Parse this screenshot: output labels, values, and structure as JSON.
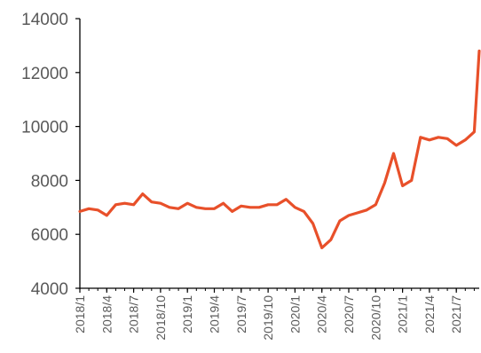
{
  "chart_data": {
    "type": "line",
    "title": "",
    "xlabel": "",
    "ylabel": "",
    "ylim": [
      4000,
      14000
    ],
    "yticks": [
      4000,
      6000,
      8000,
      10000,
      12000,
      14000
    ],
    "xticks": [
      "2018/1",
      "2018/4",
      "2018/7",
      "2018/10",
      "2019/1",
      "2019/4",
      "2019/7",
      "2019/10",
      "2020/1",
      "2020/4",
      "2020/7",
      "2020/10",
      "2021/1",
      "2021/4",
      "2021/7"
    ],
    "grid": false,
    "legend": "none",
    "colors": {
      "line": "#e8502a",
      "axis": "#000000",
      "text": "#595959"
    },
    "series": [
      {
        "x": [
          "2018/1",
          "2018/2",
          "2018/3",
          "2018/4",
          "2018/5",
          "2018/6",
          "2018/7",
          "2018/8",
          "2018/9",
          "2018/10",
          "2018/11",
          "2018/12",
          "2019/1",
          "2019/2",
          "2019/3",
          "2019/4",
          "2019/5",
          "2019/6",
          "2019/7",
          "2019/8",
          "2019/9",
          "2019/10",
          "2019/11",
          "2019/12",
          "2020/1",
          "2020/2",
          "2020/3",
          "2020/4",
          "2020/5",
          "2020/6",
          "2020/7",
          "2020/8",
          "2020/9",
          "2020/10",
          "2020/11",
          "2020/12",
          "2021/1",
          "2021/2",
          "2021/3",
          "2021/4",
          "2021/5",
          "2021/6",
          "2021/7",
          "2021/8",
          "2021/9",
          "2021/10"
        ],
        "values": [
          6850,
          6950,
          6900,
          6700,
          7100,
          7150,
          7100,
          7500,
          7200,
          7150,
          7000,
          6950,
          7150,
          7000,
          6950,
          6950,
          7150,
          6850,
          7050,
          7000,
          7000,
          7100,
          7100,
          7300,
          7000,
          6850,
          6400,
          5500,
          5800,
          6500,
          6700,
          6800,
          6900,
          7100,
          7900,
          9000,
          7800,
          8000,
          9600,
          9500,
          9600,
          9550,
          9300,
          9500,
          9800,
          12800
        ]
      }
    ]
  }
}
